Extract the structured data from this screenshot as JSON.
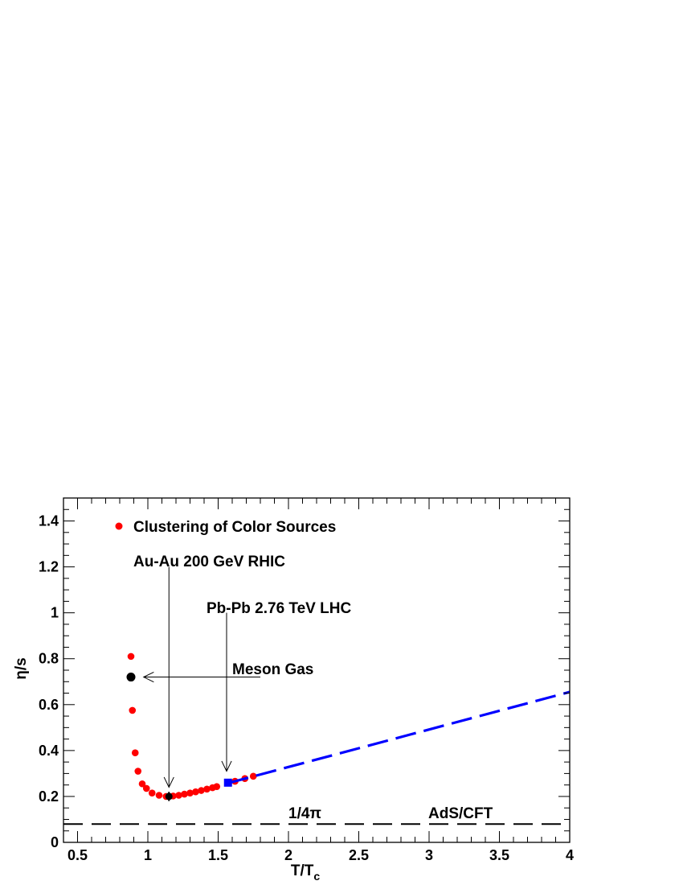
{
  "chart_data": {
    "type": "scatter",
    "title": "",
    "xlabel": "T/T",
    "xlabel_subscript": "c",
    "ylabel": "η/s",
    "xlim": [
      0.4,
      4.0
    ],
    "ylim": [
      0,
      1.5
    ],
    "x_ticks": [
      0.5,
      1,
      1.5,
      2,
      2.5,
      3,
      3.5,
      4
    ],
    "x_tick_labels": [
      "0.5",
      "1",
      "1.5",
      "2",
      "2.5",
      "3",
      "3.5",
      "4"
    ],
    "y_ticks": [
      0,
      0.2,
      0.4,
      0.6,
      0.8,
      1.0,
      1.2,
      1.4
    ],
    "y_tick_labels": [
      "0",
      "0.2",
      "0.4",
      "0.6",
      "0.8",
      "1",
      "1.2",
      "1.4"
    ],
    "legend": {
      "placement": "top-left",
      "entries": [
        {
          "label": "Clustering of Color Sources",
          "color": "#ff0000",
          "marker": "circle"
        }
      ]
    },
    "series": [
      {
        "name": "Clustering of Color Sources",
        "color": "#ff0000",
        "marker": "circle",
        "points": [
          {
            "x": 0.88,
            "y": 0.81
          },
          {
            "x": 0.89,
            "y": 0.575
          },
          {
            "x": 0.91,
            "y": 0.39
          },
          {
            "x": 0.93,
            "y": 0.31
          },
          {
            "x": 0.96,
            "y": 0.255
          },
          {
            "x": 0.99,
            "y": 0.235
          },
          {
            "x": 1.03,
            "y": 0.215
          },
          {
            "x": 1.08,
            "y": 0.205
          },
          {
            "x": 1.13,
            "y": 0.2
          },
          {
            "x": 1.18,
            "y": 0.202
          },
          {
            "x": 1.22,
            "y": 0.205
          },
          {
            "x": 1.26,
            "y": 0.21
          },
          {
            "x": 1.3,
            "y": 0.215
          },
          {
            "x": 1.34,
            "y": 0.22
          },
          {
            "x": 1.38,
            "y": 0.226
          },
          {
            "x": 1.42,
            "y": 0.232
          },
          {
            "x": 1.46,
            "y": 0.238
          },
          {
            "x": 1.49,
            "y": 0.243
          },
          {
            "x": 1.62,
            "y": 0.266
          },
          {
            "x": 1.69,
            "y": 0.278
          },
          {
            "x": 1.75,
            "y": 0.288
          }
        ]
      },
      {
        "name": "Meson Gas",
        "color": "#000000",
        "marker": "circle-large",
        "points": [
          {
            "x": 0.88,
            "y": 0.72
          }
        ]
      },
      {
        "name": "Au-Au 200 GeV RHIC",
        "color": "#000000",
        "marker": "circle-errorbar",
        "points": [
          {
            "x": 1.15,
            "y": 0.2,
            "err": 0.02
          }
        ]
      },
      {
        "name": "Pb-Pb 2.76 TeV LHC",
        "color": "#0000ff",
        "marker": "square",
        "points": [
          {
            "x": 1.57,
            "y": 0.26
          }
        ]
      },
      {
        "name": "extrapolation",
        "color": "#0000ff",
        "style": "dashed",
        "points": [
          {
            "x": 1.57,
            "y": 0.258
          },
          {
            "x": 4.0,
            "y": 0.655
          }
        ]
      },
      {
        "name": "AdS/CFT bound",
        "color": "#000000",
        "style": "long-dashed",
        "points": [
          {
            "x": 0.4,
            "y": 0.0796
          },
          {
            "x": 4.0,
            "y": 0.0796
          }
        ]
      }
    ],
    "annotations": {
      "rhic": "Au-Au 200 GeV  RHIC",
      "lhc": "Pb-Pb 2.76 TeV  LHC",
      "meson": "Meson Gas",
      "bound": "1/4π",
      "adscft": "AdS/CFT"
    },
    "arrows": [
      {
        "from": {
          "x": 1.15,
          "y": 1.2
        },
        "to": {
          "x": 1.15,
          "y": 0.24
        }
      },
      {
        "from": {
          "x": 1.56,
          "y": 1.0
        },
        "to": {
          "x": 1.56,
          "y": 0.31
        }
      },
      {
        "from": {
          "x": 1.8,
          "y": 0.72
        },
        "to": {
          "x": 0.97,
          "y": 0.72
        }
      }
    ]
  }
}
